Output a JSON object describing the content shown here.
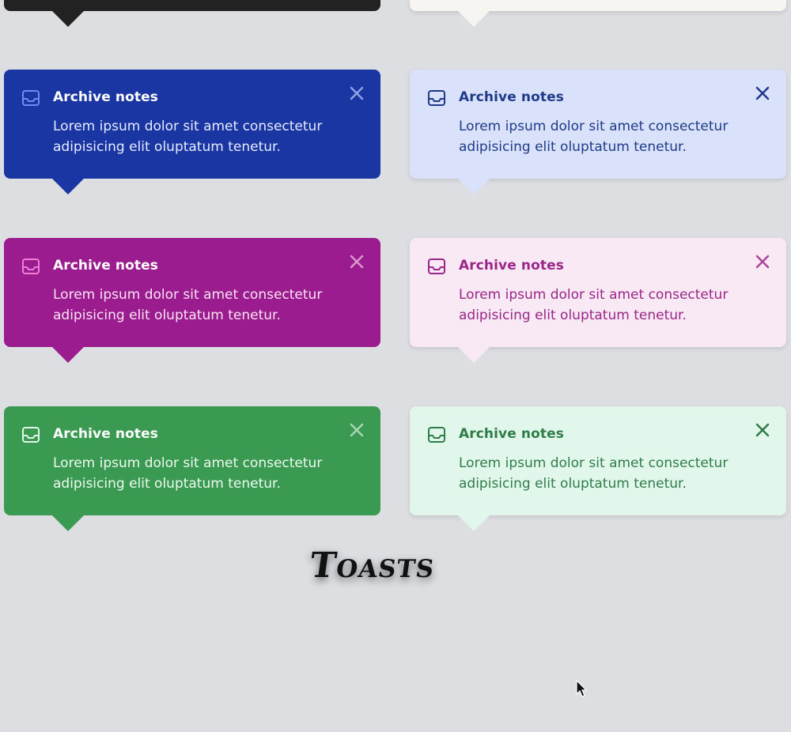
{
  "heading": "Toasts",
  "toast": {
    "title": "Archive notes",
    "body": "Lorem ipsum dolor sit amet consectetur adipisicing elit oluptatum tenetur."
  },
  "colors": {
    "dark_bg": "#222222",
    "neutral_light_bg": "#f6f5f2",
    "blue_solid_bg": "#1a36a3",
    "blue_light_bg": "#d9e1fb",
    "blue_text": "#1e3a8a",
    "purple_solid_bg": "#9b1c8e",
    "purple_light_bg": "#f8e9f5",
    "purple_text": "#9b2588",
    "green_solid_bg": "#3b9a52",
    "green_light_bg": "#e2f7ec",
    "green_text": "#2e7d47"
  },
  "icons": {
    "toast_icon": "inbox-icon",
    "close_icon": "close-icon"
  }
}
